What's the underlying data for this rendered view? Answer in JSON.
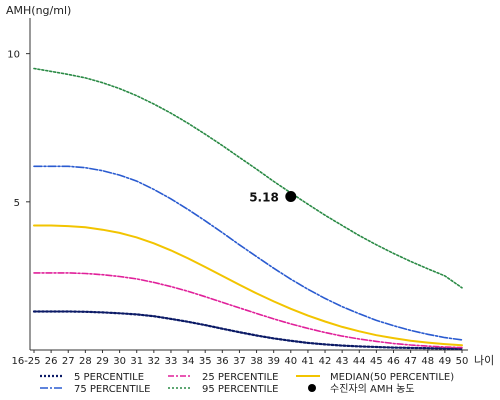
{
  "chart_data": {
    "type": "line",
    "ylabel": "AMH(ng/ml)",
    "xlabel": "나이",
    "ylim": [
      0,
      11
    ],
    "y_ticks": [
      5,
      10
    ],
    "categories": [
      "16-25",
      "26",
      "27",
      "28",
      "29",
      "30",
      "31",
      "32",
      "33",
      "34",
      "35",
      "36",
      "37",
      "38",
      "39",
      "40",
      "41",
      "42",
      "43",
      "44",
      "45",
      "46",
      "47",
      "48",
      "49",
      "50"
    ],
    "series": [
      {
        "name": "5 PERCENTILE",
        "color": "#0b1a66",
        "dash": "2,2",
        "width": 2.2,
        "values": [
          1.3,
          1.3,
          1.3,
          1.29,
          1.27,
          1.24,
          1.2,
          1.14,
          1.05,
          0.95,
          0.84,
          0.72,
          0.6,
          0.49,
          0.39,
          0.31,
          0.24,
          0.19,
          0.15,
          0.12,
          0.1,
          0.08,
          0.07,
          0.06,
          0.05,
          0.04
        ]
      },
      {
        "name": "25 PERCENTILE",
        "color": "#e0209a",
        "dash": "6,2,2,2",
        "width": 1.6,
        "values": [
          2.6,
          2.6,
          2.6,
          2.58,
          2.54,
          2.48,
          2.4,
          2.28,
          2.14,
          1.98,
          1.8,
          1.61,
          1.42,
          1.23,
          1.05,
          0.88,
          0.73,
          0.59,
          0.47,
          0.37,
          0.29,
          0.22,
          0.17,
          0.13,
          0.1,
          0.08
        ]
      },
      {
        "name": "MEDIAN(50 PERCENTILE)",
        "color": "#f2c400",
        "dash": "",
        "width": 2,
        "values": [
          4.2,
          4.2,
          4.18,
          4.14,
          4.06,
          3.95,
          3.8,
          3.6,
          3.36,
          3.09,
          2.8,
          2.5,
          2.2,
          1.91,
          1.64,
          1.39,
          1.16,
          0.96,
          0.78,
          0.63,
          0.5,
          0.4,
          0.31,
          0.25,
          0.2,
          0.16
        ]
      },
      {
        "name": "75 PERCENTILE",
        "color": "#2a5bd0",
        "dash": "8,2,2,2",
        "width": 1.6,
        "values": [
          6.2,
          6.2,
          6.2,
          6.15,
          6.05,
          5.9,
          5.7,
          5.42,
          5.1,
          4.74,
          4.36,
          3.96,
          3.55,
          3.15,
          2.76,
          2.39,
          2.05,
          1.74,
          1.46,
          1.22,
          1.0,
          0.82,
          0.66,
          0.53,
          0.42,
          0.34
        ]
      },
      {
        "name": "95 PERCENTILE",
        "color": "#2a8a45",
        "dash": "2,2",
        "width": 1.6,
        "values": [
          9.5,
          9.4,
          9.3,
          9.18,
          9.02,
          8.82,
          8.58,
          8.3,
          7.99,
          7.65,
          7.28,
          6.9,
          6.5,
          6.1,
          5.69,
          5.3,
          4.92,
          4.55,
          4.2,
          3.86,
          3.55,
          3.26,
          2.99,
          2.74,
          2.5,
          2.1
        ]
      }
    ],
    "annotation": {
      "label": "5.18",
      "category": "40",
      "value": 5.18,
      "legend": "수진자의 AMH 농도"
    },
    "legend_position": "bottom",
    "grid": false
  }
}
